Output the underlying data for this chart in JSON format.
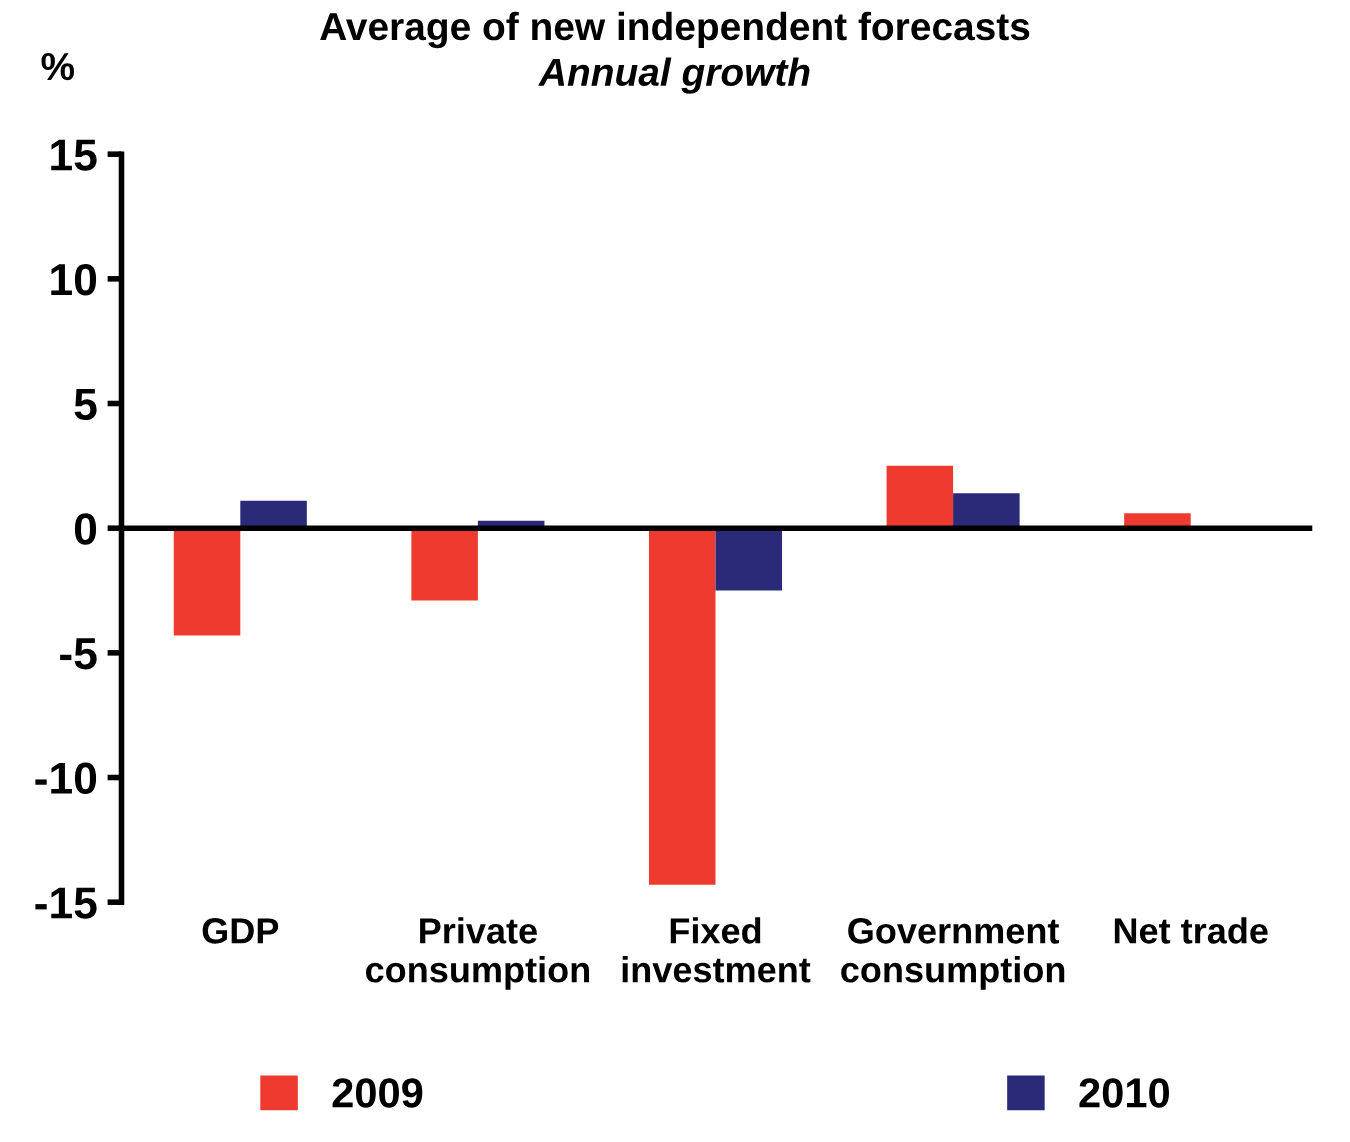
{
  "chart_data": {
    "type": "bar",
    "title": "Average of new independent forecasts",
    "subtitle": "Annual growth",
    "ylabel": "%",
    "categories": [
      "GDP",
      "Private\nconsumption",
      "Fixed\ninvestment",
      "Government\nconsumption",
      "Net trade"
    ],
    "series": [
      {
        "name": "2009",
        "color": "#ef3b2f",
        "values": [
          -4.3,
          -2.9,
          -14.3,
          2.5,
          0.6
        ]
      },
      {
        "name": "2010",
        "color": "#2b2a78",
        "values": [
          1.1,
          0.3,
          -2.5,
          1.4,
          0
        ]
      }
    ],
    "ylim": [
      -15,
      15
    ],
    "yticks": [
      -15,
      -10,
      -5,
      0,
      5,
      10,
      15
    ],
    "legend": "bottom"
  }
}
